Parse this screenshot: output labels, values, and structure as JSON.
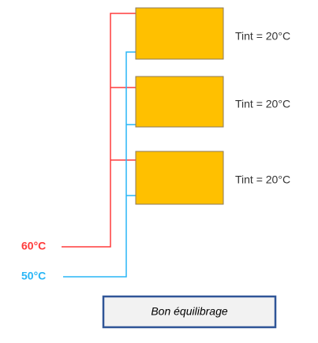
{
  "supply": {
    "label": "60°C"
  },
  "return": {
    "label": "50°C"
  },
  "radiators": [
    {
      "label": "Tint = 20°C"
    },
    {
      "label": "Tint = 20°C"
    },
    {
      "label": "Tint = 20°C"
    }
  ],
  "caption": "Bon équilibrage"
}
